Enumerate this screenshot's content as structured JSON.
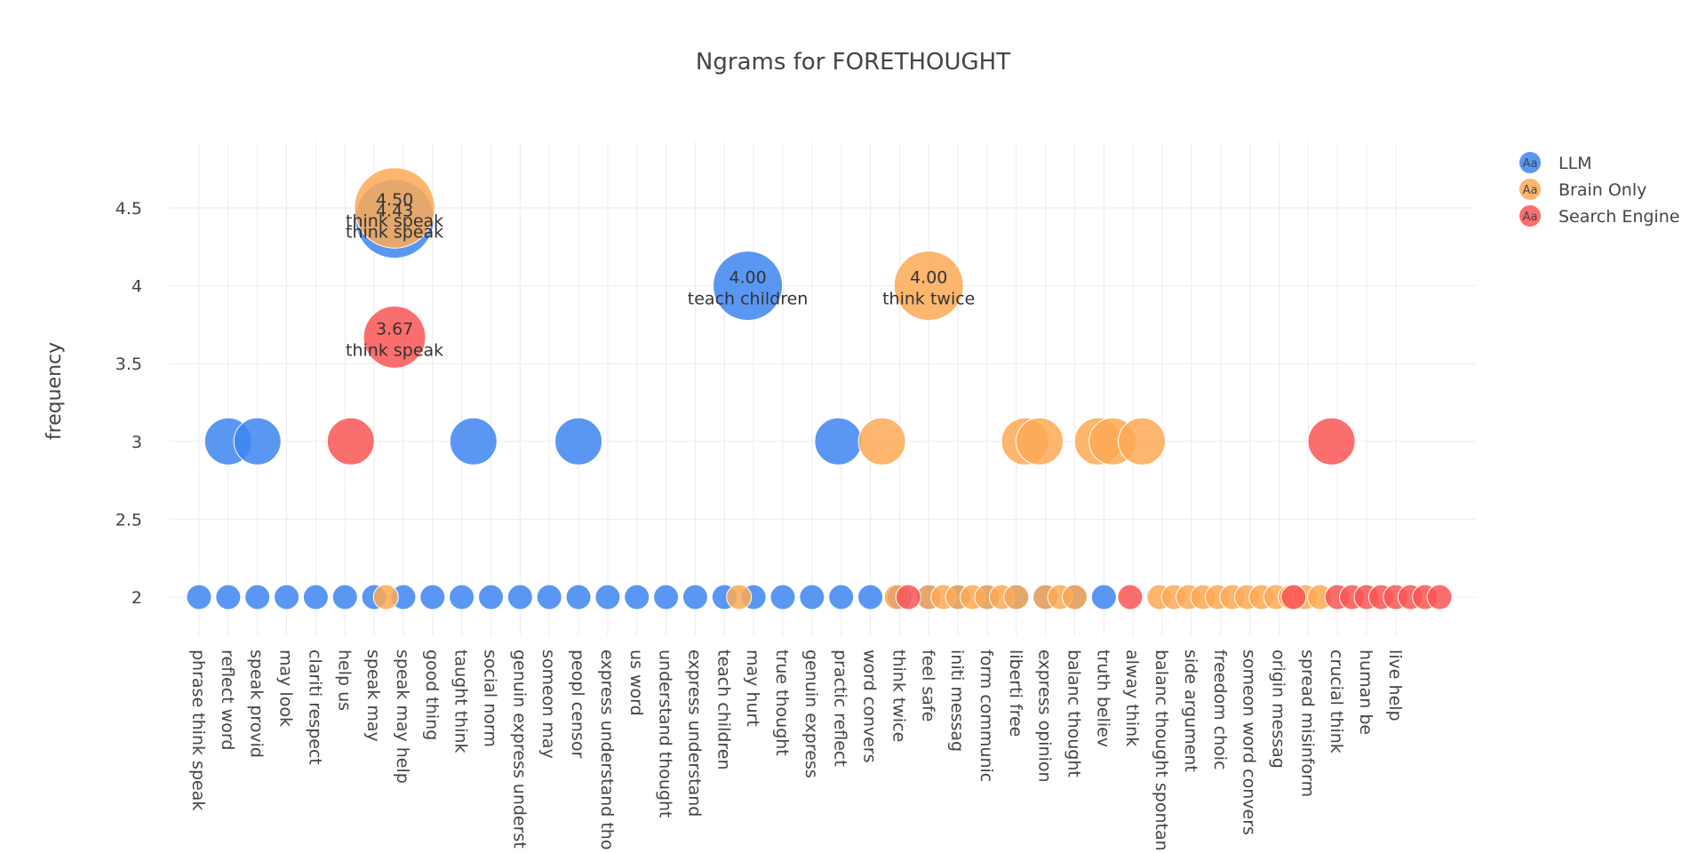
{
  "chart_data": {
    "type": "scatter",
    "title": "Ngrams for FORETHOUGHT",
    "xlabel": "",
    "ylabel": "frequency",
    "ylim": [
      1.75,
      4.92
    ],
    "yticks": [
      "2",
      "2.5",
      "3",
      "3.5",
      "4",
      "4.5"
    ],
    "ytick_values": [
      2,
      2.5,
      3,
      3.5,
      4,
      4.5
    ],
    "grid": true,
    "legend_position": "top-right",
    "legend_symbol": "Aa",
    "categories": [
      "phrase think speak",
      "reflect word",
      "speak provid",
      "may look",
      "clariti respect",
      "help us",
      "speak may",
      "speak may help",
      "good thing",
      "taught think",
      "social norm",
      "genuin express underst",
      "someon may",
      "peopl censor",
      "express understand tho",
      "us word",
      "understand thought",
      "express understand",
      "teach children",
      "may hurt",
      "true thought",
      "genuin express",
      "practic reflect",
      "word convers",
      "think twice",
      "feel safe",
      "initi messag",
      "form communic",
      "liberti free",
      "express opinion",
      "balanc thought",
      "truth believ",
      "alway think",
      "balanc thought spontan",
      "side argument",
      "freedom choic",
      "someon word convers",
      "origin messag",
      "spread misinform",
      "crucial think",
      "human be",
      "live help"
    ],
    "series": [
      {
        "name": "LLM",
        "color": "#3d85f0",
        "points": [
          {
            "x": 0,
            "y": 2
          },
          {
            "x": 1,
            "y": 2
          },
          {
            "x": 1,
            "y": 3
          },
          {
            "x": 2,
            "y": 3
          },
          {
            "x": 2,
            "y": 2
          },
          {
            "x": 3,
            "y": 2
          },
          {
            "x": 4,
            "y": 2
          },
          {
            "x": 5,
            "y": 2
          },
          {
            "x": 6,
            "y": 2
          },
          {
            "x": 7,
            "y": 2
          },
          {
            "x": 8,
            "y": 2
          },
          {
            "x": 9,
            "y": 2
          },
          {
            "x": 10,
            "y": 2
          },
          {
            "x": 11,
            "y": 2
          },
          {
            "x": 12,
            "y": 2
          },
          {
            "x": 13,
            "y": 2
          },
          {
            "x": 14,
            "y": 2
          },
          {
            "x": 15,
            "y": 2
          },
          {
            "x": 16,
            "y": 2
          },
          {
            "x": 17,
            "y": 2
          },
          {
            "x": 18,
            "y": 2
          },
          {
            "x": 19,
            "y": 2
          },
          {
            "x": 20,
            "y": 2
          },
          {
            "x": 21,
            "y": 2
          },
          {
            "x": 22,
            "y": 2
          },
          {
            "x": 23,
            "y": 2
          },
          {
            "x": 24,
            "y": 2
          },
          {
            "x": 25,
            "y": 2
          },
          {
            "x": 26,
            "y": 2
          },
          {
            "x": 27,
            "y": 2
          },
          {
            "x": 28,
            "y": 2
          },
          {
            "x": 29,
            "y": 2
          },
          {
            "x": 30,
            "y": 2
          },
          {
            "x": 31,
            "y": 2
          },
          {
            "x": 6.7,
            "y": 4.43,
            "label": "4.43",
            "text": "think speak"
          },
          {
            "x": 9.4,
            "y": 3
          },
          {
            "x": 13.0,
            "y": 3
          },
          {
            "x": 18.8,
            "y": 4.0,
            "label": "4.00",
            "text": "teach children"
          },
          {
            "x": 21.9,
            "y": 3
          }
        ]
      },
      {
        "name": "Brain Only",
        "color": "#fda955",
        "points": [
          {
            "x": 6.4,
            "y": 2
          },
          {
            "x": 18.5,
            "y": 2
          },
          {
            "x": 6.7,
            "y": 4.5,
            "label": "4.50",
            "text": "think speak"
          },
          {
            "x": 23.4,
            "y": 3
          },
          {
            "x": 25.0,
            "y": 4.0,
            "label": "4.00",
            "text": "think twice"
          },
          {
            "x": 28.3,
            "y": 3
          },
          {
            "x": 28.8,
            "y": 3
          },
          {
            "x": 30.8,
            "y": 3
          },
          {
            "x": 31.3,
            "y": 3
          },
          {
            "x": 32.3,
            "y": 3
          },
          {
            "x": 23.9,
            "y": 2
          },
          {
            "x": 25.0,
            "y": 2
          },
          {
            "x": 25.5,
            "y": 2
          },
          {
            "x": 26.0,
            "y": 2
          },
          {
            "x": 26.5,
            "y": 2
          },
          {
            "x": 27.0,
            "y": 2
          },
          {
            "x": 27.5,
            "y": 2
          },
          {
            "x": 28.0,
            "y": 2
          },
          {
            "x": 29.0,
            "y": 2
          },
          {
            "x": 29.5,
            "y": 2
          },
          {
            "x": 30.0,
            "y": 2
          },
          {
            "x": 32.9,
            "y": 2
          },
          {
            "x": 33.4,
            "y": 2
          },
          {
            "x": 33.9,
            "y": 2
          },
          {
            "x": 34.4,
            "y": 2
          },
          {
            "x": 34.9,
            "y": 2
          },
          {
            "x": 35.4,
            "y": 2
          },
          {
            "x": 35.9,
            "y": 2
          },
          {
            "x": 36.4,
            "y": 2
          },
          {
            "x": 36.9,
            "y": 2
          },
          {
            "x": 37.4,
            "y": 2
          },
          {
            "x": 37.9,
            "y": 2
          },
          {
            "x": 38.4,
            "y": 2
          }
        ]
      },
      {
        "name": "Search Engine",
        "color": "#fa5555",
        "points": [
          {
            "x": 5.2,
            "y": 3
          },
          {
            "x": 6.7,
            "y": 3.67,
            "label": "3.67",
            "text": "think speak"
          },
          {
            "x": 24.3,
            "y": 2
          },
          {
            "x": 31.9,
            "y": 2
          },
          {
            "x": 37.5,
            "y": 2
          },
          {
            "x": 38.8,
            "y": 3
          },
          {
            "x": 39.0,
            "y": 2
          },
          {
            "x": 39.5,
            "y": 2
          },
          {
            "x": 40.0,
            "y": 2
          },
          {
            "x": 40.5,
            "y": 2
          },
          {
            "x": 41.0,
            "y": 2
          },
          {
            "x": 41.5,
            "y": 2
          },
          {
            "x": 42.0,
            "y": 2
          },
          {
            "x": 42.5,
            "y": 2
          }
        ]
      }
    ]
  }
}
